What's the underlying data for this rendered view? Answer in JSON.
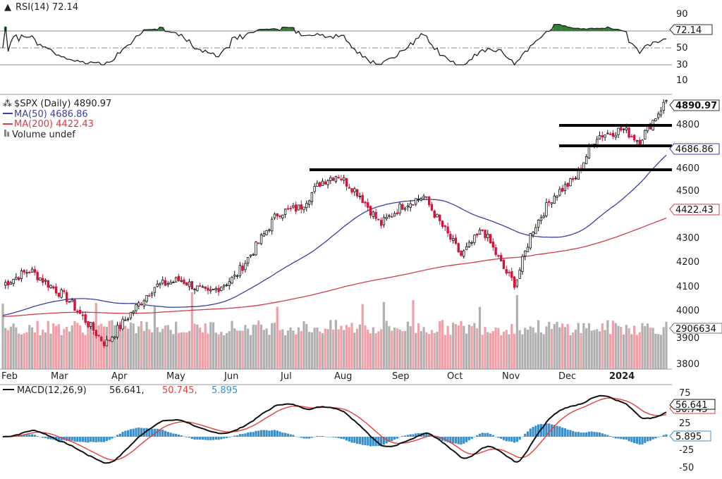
{
  "rsi_panel": {
    "label": "RSI(14) 72.14",
    "value_tag": "72.14",
    "ticks": [
      "90",
      "70",
      "50",
      "30",
      "10"
    ]
  },
  "price_panel": {
    "legend": {
      "symbol": "$SPX (Daily) 4890.97",
      "ma50": "MA(50) 4686.86",
      "ma200": "MA(200) 4422.43",
      "volume": "Volume undef"
    },
    "tags": {
      "price": "4890.97",
      "ma50": "4686.86",
      "ma200": "4422.43",
      "volume": "2906634"
    },
    "ticks": [
      "4800",
      "4700",
      "4600",
      "4500",
      "4400",
      "4300",
      "4200",
      "4100",
      "4000",
      "3900",
      "3800"
    ],
    "months": [
      "Feb",
      "Mar",
      "Apr",
      "May",
      "Jun",
      "Jul",
      "Aug",
      "Sep",
      "Oct",
      "Nov",
      "Dec",
      "2024"
    ]
  },
  "macd_panel": {
    "label_name": "MACD(12,26,9)",
    "label_macd": "56.641,",
    "label_signal": "50.745,",
    "label_hist": "5.895",
    "tags": {
      "macd": "56.641",
      "signal": "50.745",
      "hist": "5.895"
    },
    "ticks": [
      "75",
      "50",
      "25",
      "0",
      "-25",
      "-50"
    ]
  },
  "colors": {
    "up": "#111111",
    "down": "#d2143c",
    "ma50": "#3a3fa0",
    "ma200": "#d23c4a",
    "rsi": "#222222",
    "rsi_fill": "#2e7d32",
    "vol_up": "#b0b0b0",
    "vol_down": "#f0a0a8",
    "macd": "#111111",
    "signal": "#e0413c",
    "hist": "#3a8fc8"
  },
  "chart_data": [
    {
      "type": "candlestick",
      "title": "$SPX (Daily)",
      "x_labels": [
        "Feb",
        "Mar",
        "Apr",
        "May",
        "Jun",
        "Jul",
        "Aug",
        "Sep",
        "Oct",
        "Nov",
        "Dec",
        "2024"
      ],
      "ylim": [
        3780,
        4920
      ],
      "close_path": [
        {
          "x": 0,
          "y": 4120
        },
        {
          "x": 0.5,
          "y": 4180
        },
        {
          "x": 1.2,
          "y": 4060
        },
        {
          "x": 1.6,
          "y": 3950
        },
        {
          "x": 1.9,
          "y": 3870
        },
        {
          "x": 2.3,
          "y": 3980
        },
        {
          "x": 2.8,
          "y": 4110
        },
        {
          "x": 3.3,
          "y": 4140
        },
        {
          "x": 3.8,
          "y": 4080
        },
        {
          "x": 4.3,
          "y": 4150
        },
        {
          "x": 4.7,
          "y": 4280
        },
        {
          "x": 5.1,
          "y": 4420
        },
        {
          "x": 5.5,
          "y": 4440
        },
        {
          "x": 5.9,
          "y": 4550
        },
        {
          "x": 6.2,
          "y": 4580
        },
        {
          "x": 6.6,
          "y": 4500
        },
        {
          "x": 7.0,
          "y": 4370
        },
        {
          "x": 7.4,
          "y": 4450
        },
        {
          "x": 7.8,
          "y": 4490
        },
        {
          "x": 8.1,
          "y": 4380
        },
        {
          "x": 8.5,
          "y": 4240
        },
        {
          "x": 8.9,
          "y": 4350
        },
        {
          "x": 9.3,
          "y": 4180
        },
        {
          "x": 9.5,
          "y": 4120
        },
        {
          "x": 9.8,
          "y": 4340
        },
        {
          "x": 10.2,
          "y": 4490
        },
        {
          "x": 10.6,
          "y": 4560
        },
        {
          "x": 11.0,
          "y": 4740
        },
        {
          "x": 11.5,
          "y": 4770
        },
        {
          "x": 11.8,
          "y": 4720
        },
        {
          "x": 12.3,
          "y": 4890
        }
      ],
      "support_lines": [
        4600,
        4700,
        4800
      ],
      "series": [
        {
          "name": "MA(50)",
          "last": 4686.86
        },
        {
          "name": "MA(200)",
          "last": 4422.43
        }
      ]
    },
    {
      "type": "line",
      "title": "RSI(14)",
      "ylim": [
        10,
        100
      ],
      "last": 72.14
    },
    {
      "type": "line",
      "title": "MACD(12,26,9)",
      "series": [
        {
          "name": "MACD",
          "last": 56.641
        },
        {
          "name": "Signal",
          "last": 50.745
        },
        {
          "name": "Histogram",
          "last": 5.895
        }
      ],
      "ylim": [
        -60,
        85
      ]
    }
  ]
}
